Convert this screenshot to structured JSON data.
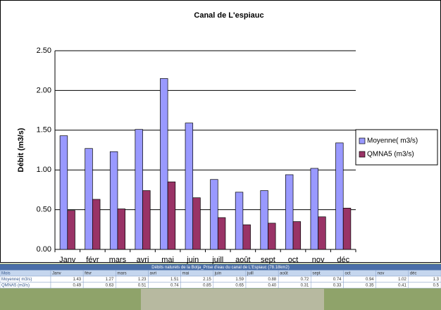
{
  "chart_data": {
    "type": "bar",
    "title": "Canal de L'espiauc",
    "ylabel": "Débit (m3/s)",
    "categories": [
      "Janv",
      "févr",
      "mars",
      "avri",
      "mai",
      "juin",
      "juill",
      "août",
      "sept",
      "oct",
      "nov",
      "déc"
    ],
    "series": [
      {
        "name": "Moyenne( m3/s)",
        "color": "#9999ff",
        "values": [
          1.43,
          1.27,
          1.23,
          1.51,
          2.15,
          1.59,
          0.88,
          0.72,
          0.74,
          0.94,
          1.02,
          1.34
        ]
      },
      {
        "name": "QMNA5 (m3/s)",
        "color": "#993366",
        "values": [
          0.49,
          0.63,
          0.51,
          0.74,
          0.85,
          0.65,
          0.4,
          0.31,
          0.33,
          0.35,
          0.41,
          0.52
        ]
      }
    ],
    "ylim": [
      0,
      2.5
    ],
    "yticks": [
      {
        "value": 0,
        "label": "0.00"
      },
      {
        "value": 0.5,
        "label": "0.50"
      },
      {
        "value": 1,
        "label": "1.00"
      },
      {
        "value": 1.5,
        "label": "1.50"
      },
      {
        "value": 2,
        "label": "2.00"
      },
      {
        "value": 2.5,
        "label": "2.50"
      }
    ],
    "grid": true,
    "legend": "right"
  },
  "table": {
    "title": "Débits naturels de la Botja_Prise d'eau du canal de L'Espiauc (78.18km2)",
    "rows": [
      [
        "Mois",
        "Janv",
        "févr",
        "mars",
        "avri",
        "mai",
        "juin",
        "juill",
        "août",
        "sept",
        "oct",
        "nov",
        "déc"
      ],
      [
        "Moyenne( m3/s)",
        "1.43",
        "1.27",
        "1.23",
        "1.51",
        "2.15",
        "1.59",
        "0.88",
        "0.72",
        "0.74",
        "0.94",
        "1.02",
        "1.3"
      ],
      [
        "QMNA5 (m3/s)",
        "0.49",
        "0.63",
        "0.51",
        "0.74",
        "0.85",
        "0.65",
        "0.40",
        "0.31",
        "0.33",
        "0.35",
        "0.41",
        "0.5"
      ]
    ]
  }
}
